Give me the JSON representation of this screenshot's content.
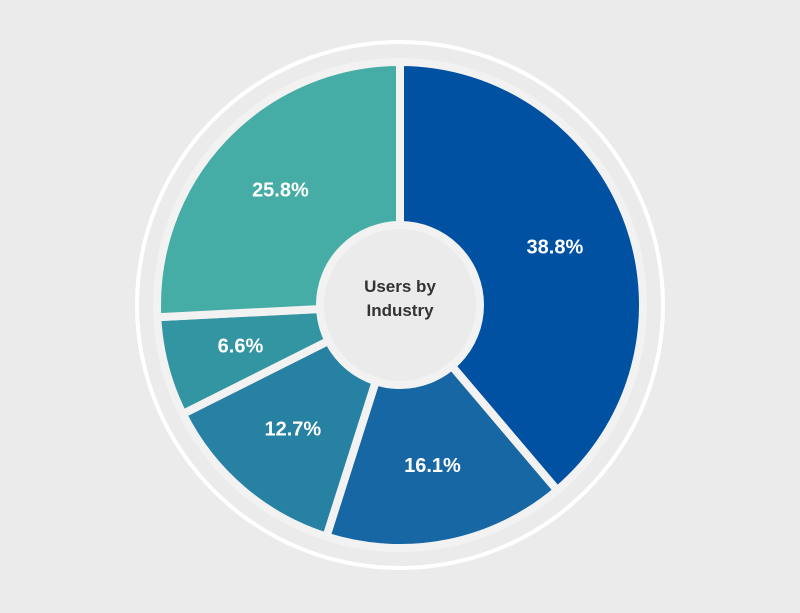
{
  "chart_data": {
    "type": "donut",
    "title": "Users by Industry",
    "values": [
      38.8,
      16.1,
      12.7,
      6.6,
      25.8
    ],
    "value_labels": [
      "38.8%",
      "16.1%",
      "12.7%",
      "6.6%",
      "25.8%"
    ],
    "colors": [
      "#0151a2",
      "#1667a3",
      "#2681a2",
      "#3395a2",
      "#45ada6"
    ]
  }
}
